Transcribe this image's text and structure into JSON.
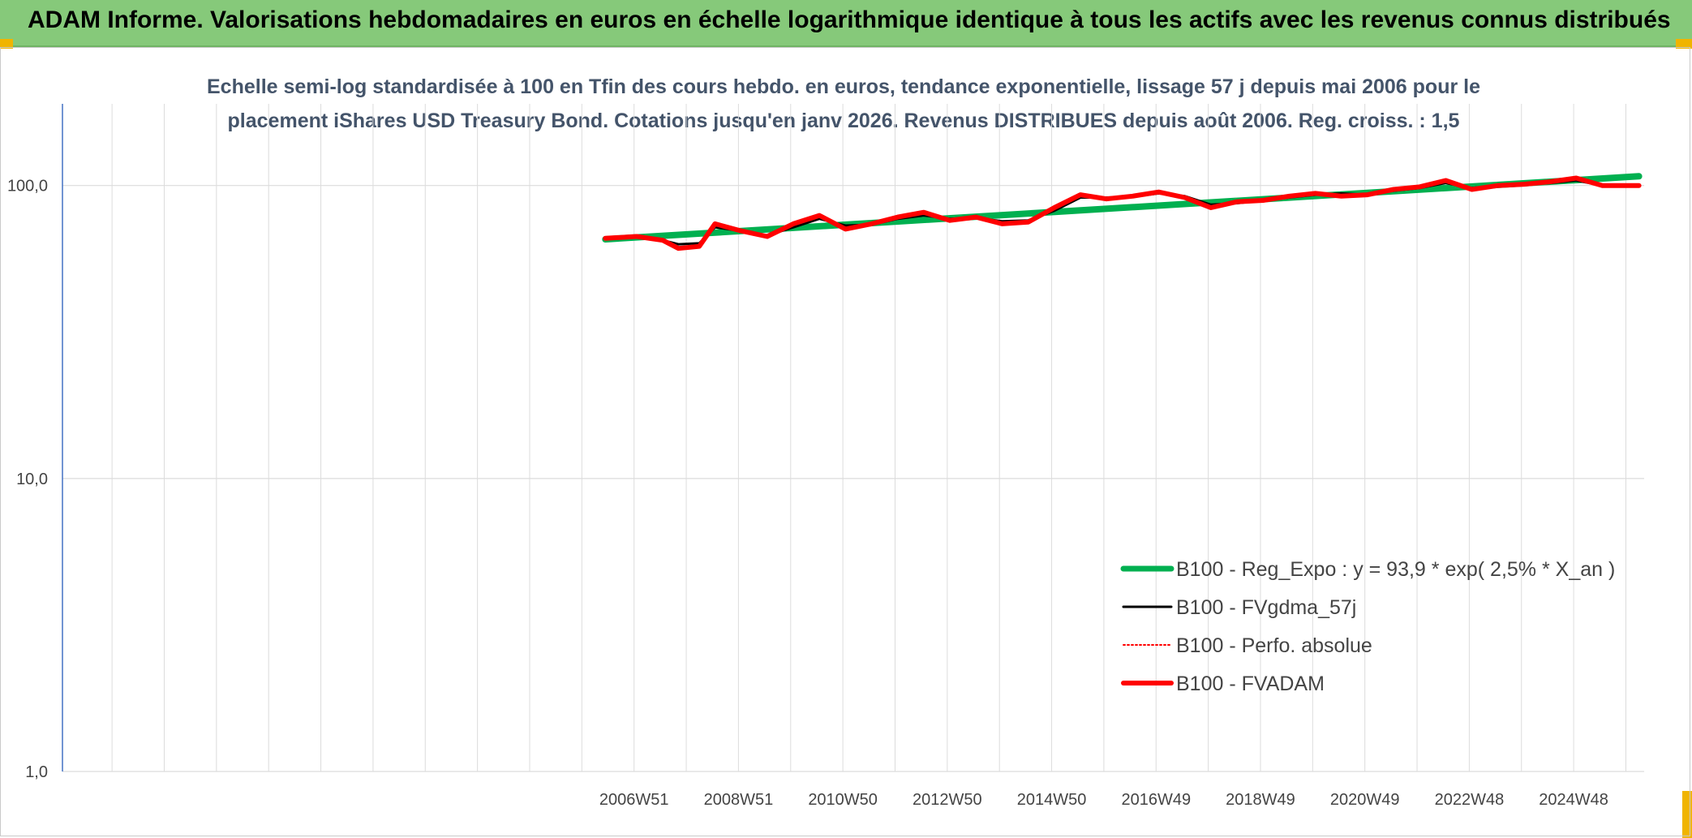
{
  "header": {
    "title": "ADAM Informe. Valorisations hebdomadaires en euros en échelle logarithmique identique à tous les actifs avec les revenus connus distribués"
  },
  "chart_data": {
    "type": "line",
    "title": "Echelle semi-log standardisée à 100 en Tfin des cours hebdo. en euros, tendance exponentielle, lissage 57 j depuis mai 2006 pour le placement iShares USD Treasury Bond. Cotations jusqu'en janv 2026. Revenus DISTRIBUES depuis août 2006. Reg. croiss. : 1,5",
    "title_lines": [
      "Echelle semi-log standardisée à 100 en Tfin des cours hebdo. en euros, tendance exponentielle, lissage 57 j depuis mai 2006 pour le",
      "placement iShares USD Treasury Bond. Cotations jusqu'en janv 2026. Revenus DISTRIBUES depuis août 2006. Reg. croiss. : 1,5"
    ],
    "y_scale": "log",
    "ylim": [
      1,
      190
    ],
    "y_ticks": [
      {
        "value": 100,
        "label": "100,0"
      },
      {
        "value": 10,
        "label": "10,0"
      },
      {
        "value": 1,
        "label": "1,0"
      }
    ],
    "x_unit": "year",
    "xlim": [
      1996.0,
      2026.3
    ],
    "x_ticks": [
      {
        "value": 2006.95,
        "label": "2006W51"
      },
      {
        "value": 2008.95,
        "label": "2008W51"
      },
      {
        "value": 2010.95,
        "label": "2010W50"
      },
      {
        "value": 2012.95,
        "label": "2012W50"
      },
      {
        "value": 2014.95,
        "label": "2014W50"
      },
      {
        "value": 2016.95,
        "label": "2016W49"
      },
      {
        "value": 2018.95,
        "label": "2018W49"
      },
      {
        "value": 2020.95,
        "label": "2020W49"
      },
      {
        "value": 2022.95,
        "label": "2022W48"
      },
      {
        "value": 2024.95,
        "label": "2024W48"
      }
    ],
    "grid": true,
    "legend_position": "right-inside",
    "series": [
      {
        "name": "B100 - Reg_Expo : y = 93,9 * exp( 2,5% *  X_an )",
        "color": "#00b050",
        "style": "solid-thick",
        "x": [
          2006.4,
          2026.2
        ],
        "y": [
          65.5,
          107.5
        ]
      },
      {
        "name": "B100 - FVgdma_57j",
        "color": "#000000",
        "style": "solid",
        "x": [
          2006.4,
          2007.0,
          2007.5,
          2007.8,
          2008.2,
          2008.5,
          2009.0,
          2009.5,
          2010.0,
          2010.5,
          2011.0,
          2011.5,
          2012.0,
          2012.5,
          2013.0,
          2013.5,
          2014.0,
          2014.5,
          2015.0,
          2015.5,
          2016.0,
          2016.5,
          2017.0,
          2017.5,
          2018.0,
          2018.5,
          2019.0,
          2019.5,
          2020.0,
          2020.5,
          2021.0,
          2021.5,
          2022.0,
          2022.5,
          2023.0,
          2023.5,
          2024.0,
          2024.5,
          2025.0,
          2025.5,
          2026.2
        ],
        "y": [
          66.0,
          66.5,
          65.0,
          63.0,
          63.5,
          72.0,
          70.0,
          67.5,
          72.0,
          77.0,
          73.0,
          73.5,
          77.0,
          79.0,
          77.0,
          77.5,
          75.5,
          76.0,
          82.0,
          91.0,
          91.0,
          91.5,
          94.0,
          92.0,
          86.0,
          87.0,
          89.0,
          91.0,
          93.0,
          94.0,
          93.0,
          96.0,
          98.0,
          102.0,
          98.0,
          100.0,
          101.0,
          102.0,
          104.0,
          100.0,
          100.0
        ]
      },
      {
        "name": "B100 - Perfo. absolue",
        "color": "#ff0000",
        "style": "dotted",
        "x": [
          2006.4,
          2007.0,
          2007.5,
          2007.8,
          2008.2,
          2008.5,
          2009.0,
          2009.5,
          2010.0,
          2010.5,
          2011.0,
          2011.5,
          2012.0,
          2012.5,
          2013.0,
          2013.5,
          2014.0,
          2014.5,
          2015.0,
          2015.5,
          2016.0,
          2016.5,
          2017.0,
          2017.5,
          2018.0,
          2018.5,
          2019.0,
          2019.5,
          2020.0,
          2020.5,
          2021.0,
          2021.5,
          2022.0,
          2022.5,
          2023.0,
          2023.5,
          2024.0,
          2024.5,
          2025.0,
          2025.5,
          2026.2
        ],
        "y": [
          66.0,
          67.0,
          65.0,
          61.0,
          62.0,
          74.0,
          70.0,
          67.0,
          74.0,
          79.0,
          71.0,
          74.0,
          78.0,
          81.0,
          76.0,
          78.0,
          74.0,
          75.0,
          84.0,
          93.0,
          90.0,
          92.0,
          95.0,
          91.0,
          84.0,
          88.0,
          89.0,
          92.0,
          94.0,
          92.0,
          93.0,
          97.0,
          99.0,
          104.0,
          97.0,
          100.0,
          101.0,
          103.0,
          106.0,
          100.0,
          100.0
        ]
      },
      {
        "name": "B100 - FVADAM",
        "color": "#ff0000",
        "style": "solid-thick",
        "x": [
          2006.4,
          2007.0,
          2007.5,
          2007.8,
          2008.2,
          2008.5,
          2009.0,
          2009.5,
          2010.0,
          2010.5,
          2011.0,
          2011.5,
          2012.0,
          2012.5,
          2013.0,
          2013.5,
          2014.0,
          2014.5,
          2015.0,
          2015.5,
          2016.0,
          2016.5,
          2017.0,
          2017.5,
          2018.0,
          2018.5,
          2019.0,
          2019.5,
          2020.0,
          2020.5,
          2021.0,
          2021.5,
          2022.0,
          2022.5,
          2023.0,
          2023.5,
          2024.0,
          2024.5,
          2025.0,
          2025.5,
          2026.2
        ],
        "y": [
          66.0,
          67.0,
          65.0,
          61.0,
          62.0,
          74.0,
          70.0,
          67.0,
          74.0,
          79.0,
          71.0,
          74.0,
          78.0,
          81.0,
          76.0,
          78.0,
          74.0,
          75.0,
          84.0,
          93.0,
          90.0,
          92.0,
          95.0,
          91.0,
          84.0,
          88.0,
          89.0,
          92.0,
          94.0,
          92.0,
          93.0,
          97.0,
          99.0,
          104.0,
          97.0,
          100.0,
          101.0,
          103.0,
          106.0,
          100.0,
          100.0
        ]
      }
    ]
  }
}
